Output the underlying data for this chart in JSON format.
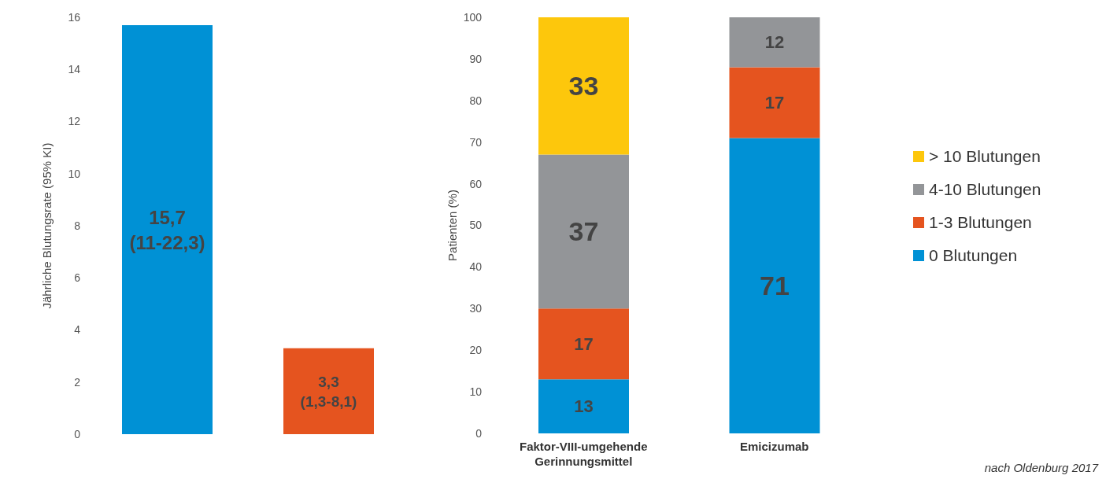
{
  "chart_data": [
    {
      "type": "bar",
      "categories": [
        null,
        null
      ],
      "values": [
        15.7,
        3.3
      ],
      "colors": [
        "#0091d5",
        "#e5541f"
      ],
      "value_labels": [
        "15,7 (11-22,3)",
        "3,3 (1,3-8,1)"
      ],
      "ylabel": "Jährliche Blutungsrate (95% KI)",
      "ylim": [
        0,
        16
      ],
      "yticks": [
        0,
        2,
        4,
        6,
        8,
        10,
        12,
        14,
        16
      ],
      "grid": false
    },
    {
      "type": "bar",
      "stacked": true,
      "categories": [
        "Faktor-VIII-umgehende Gerinnungsmittel",
        "Emicizumab"
      ],
      "series": [
        {
          "name": "0 Blutungen",
          "color": "#0091d5",
          "values": [
            13,
            71
          ]
        },
        {
          "name": "1-3 Blutungen",
          "color": "#e5541f",
          "values": [
            17,
            17
          ]
        },
        {
          "name": "4-10 Blutungen",
          "color": "#939598",
          "values": [
            37,
            12
          ]
        },
        {
          "name": "> 10 Blutungen",
          "color": "#fdc70c",
          "values": [
            33,
            null
          ]
        }
      ],
      "ylabel": "Patienten (%)",
      "ylim": [
        0,
        100
      ],
      "yticks": [
        0,
        10,
        20,
        30,
        40,
        50,
        60,
        70,
        80,
        90,
        100
      ],
      "grid": false,
      "data_labels": true,
      "legend": "right",
      "annotations": [
        "nach Oldenburg 2017"
      ]
    }
  ]
}
